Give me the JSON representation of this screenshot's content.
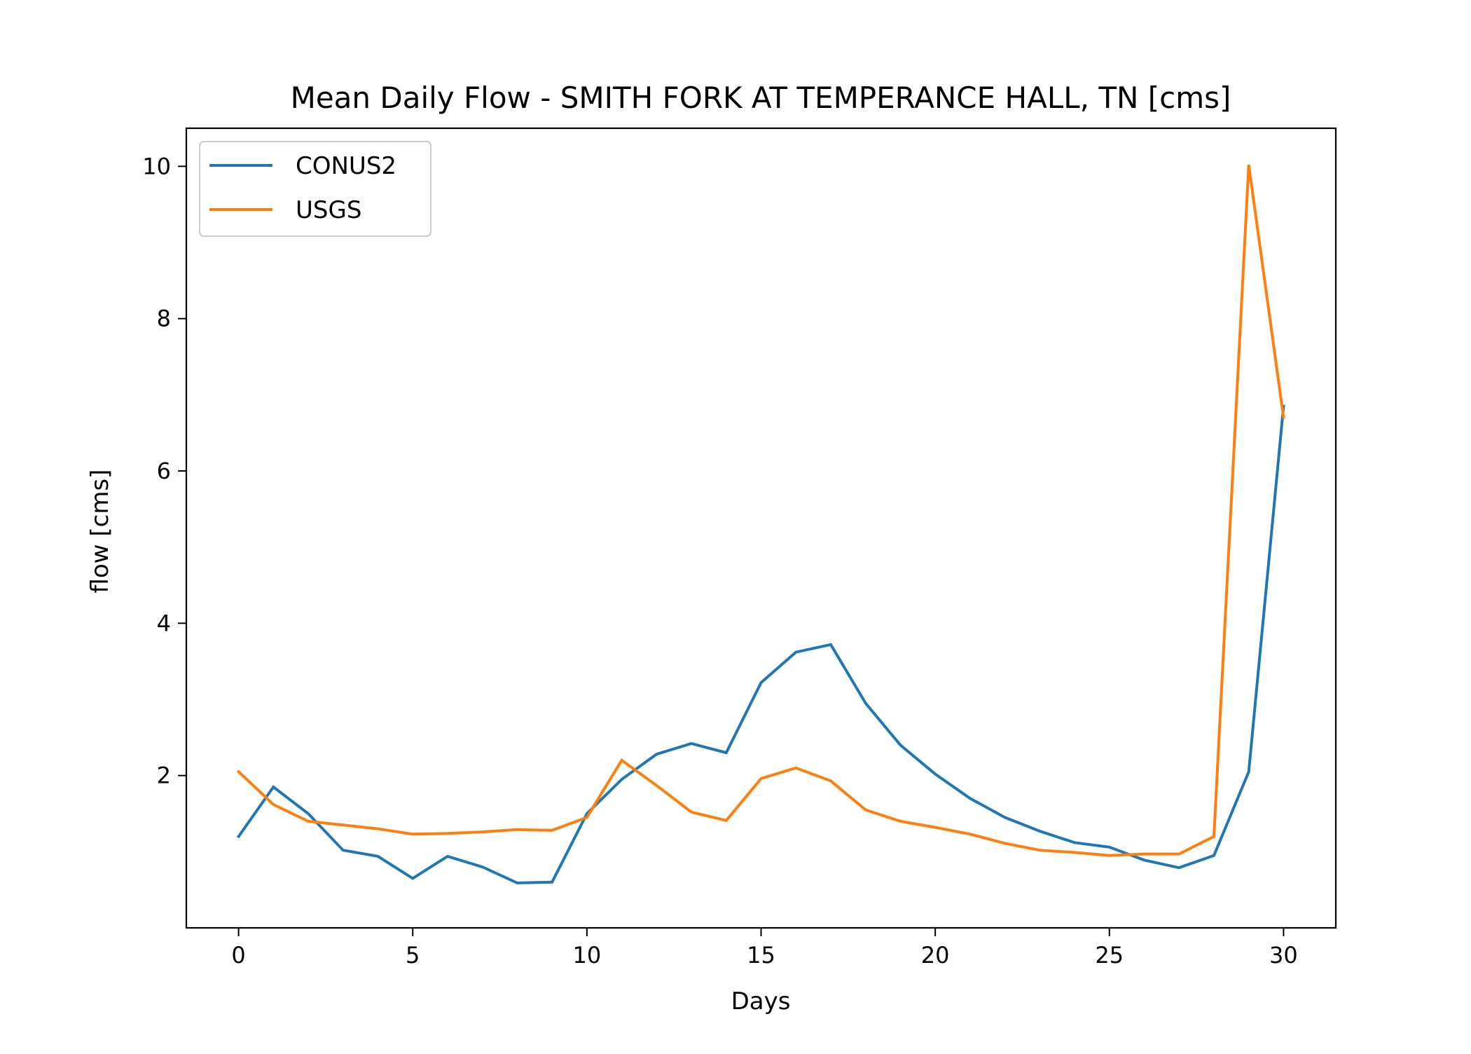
{
  "chart_data": {
    "type": "line",
    "title": "Mean Daily Flow - SMITH FORK AT TEMPERANCE HALL, TN [cms]",
    "xlabel": "Days",
    "ylabel": "flow [cms]",
    "xlim": [
      -1.5,
      31.5
    ],
    "ylim": [
      0.0,
      10.5
    ],
    "xticks": [
      0,
      5,
      10,
      15,
      20,
      25,
      30
    ],
    "yticks": [
      2,
      4,
      6,
      8,
      10
    ],
    "grid": false,
    "legend_position": "top-left",
    "x": [
      0,
      1,
      2,
      3,
      4,
      5,
      6,
      7,
      8,
      9,
      10,
      11,
      12,
      13,
      14,
      15,
      16,
      17,
      18,
      19,
      20,
      21,
      22,
      23,
      24,
      25,
      26,
      27,
      28,
      29,
      30
    ],
    "series": [
      {
        "name": "CONUS2",
        "color": "#1f77b4",
        "values": [
          1.2,
          1.85,
          1.5,
          1.02,
          0.94,
          0.65,
          0.94,
          0.8,
          0.59,
          0.6,
          1.5,
          1.95,
          2.28,
          2.42,
          2.3,
          3.22,
          3.62,
          3.72,
          2.95,
          2.4,
          2.02,
          1.7,
          1.45,
          1.27,
          1.12,
          1.06,
          0.89,
          0.79,
          0.95,
          2.05,
          6.85
        ]
      },
      {
        "name": "USGS",
        "color": "#ff7f0e",
        "values": [
          2.05,
          1.62,
          1.4,
          1.35,
          1.3,
          1.23,
          1.24,
          1.26,
          1.29,
          1.28,
          1.45,
          2.2,
          1.87,
          1.52,
          1.41,
          1.96,
          2.1,
          1.93,
          1.55,
          1.4,
          1.32,
          1.23,
          1.11,
          1.02,
          0.99,
          0.95,
          0.97,
          0.97,
          1.2,
          10.02,
          6.7
        ]
      }
    ]
  }
}
